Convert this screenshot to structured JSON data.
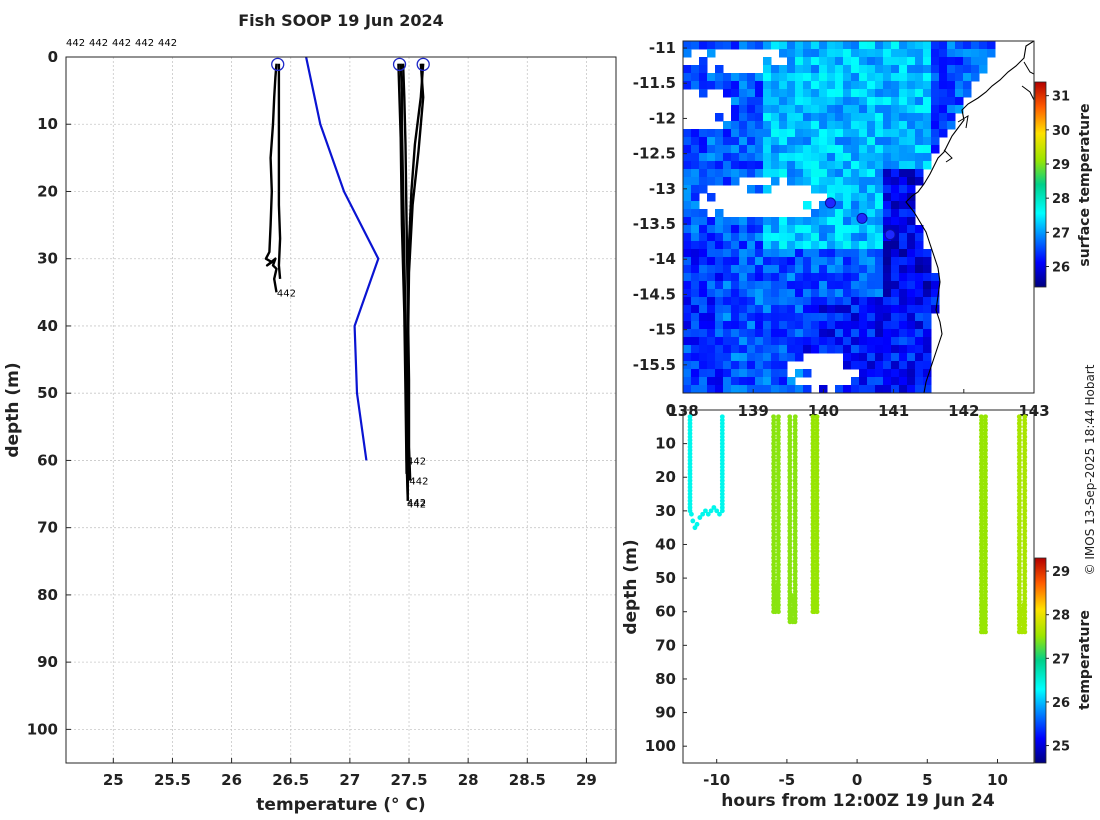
{
  "figure_title": "Fish SOOP 19 Jun 2024",
  "copyright": "© IMOS 13-Sep-2025 18:44 Hobart",
  "colors": {
    "profile": "#000000",
    "climatology": "#0a14d2",
    "start_marker": "#1e28c8",
    "coast": "#000000"
  },
  "chart_data": [
    {
      "id": "profile",
      "type": "line",
      "xlabel": "temperature (° C)",
      "ylabel": "depth (m)",
      "xlim": [
        24.6,
        29.25
      ],
      "ylim": [
        0,
        105
      ],
      "y_reversed": true,
      "xticks": [
        25,
        25.5,
        26,
        26.5,
        27,
        27.5,
        28,
        28.5,
        29
      ],
      "yticks": [
        0,
        10,
        20,
        30,
        40,
        50,
        60,
        70,
        80,
        90,
        100
      ],
      "grid": true,
      "top_labels": [
        "442",
        "442",
        "442",
        "442",
        "442"
      ],
      "series": [
        {
          "name": "442 profile 1",
          "label": "442",
          "label_at": [
            26.4,
            35
          ],
          "points": [
            [
              26.38,
              1
            ],
            [
              26.37,
              3
            ],
            [
              26.36,
              6
            ],
            [
              26.35,
              10
            ],
            [
              26.33,
              15
            ],
            [
              26.34,
              20
            ],
            [
              26.33,
              25
            ],
            [
              26.32,
              29
            ],
            [
              26.29,
              30
            ],
            [
              26.34,
              30.5
            ],
            [
              26.3,
              31
            ],
            [
              26.37,
              30
            ],
            [
              26.35,
              31
            ],
            [
              26.38,
              31.5
            ],
            [
              26.36,
              33
            ],
            [
              26.38,
              35
            ]
          ]
        },
        {
          "name": "442 profile 1b",
          "label": "",
          "points": [
            [
              26.4,
              1
            ],
            [
              26.4,
              8
            ],
            [
              26.4,
              15
            ],
            [
              26.4,
              22
            ],
            [
              26.41,
              27
            ],
            [
              26.4,
              31
            ],
            [
              26.41,
              33
            ]
          ]
        },
        {
          "name": "442 profile 2",
          "label": "442",
          "label_at": [
            27.5,
            60
          ],
          "points": [
            [
              27.43,
              1
            ],
            [
              27.44,
              5
            ],
            [
              27.44,
              10
            ],
            [
              27.45,
              20
            ],
            [
              27.46,
              30
            ],
            [
              27.47,
              40
            ],
            [
              27.48,
              50
            ],
            [
              27.49,
              60
            ],
            [
              27.49,
              65
            ]
          ]
        },
        {
          "name": "442 profile 3",
          "label": "442",
          "label_at": [
            27.52,
            63
          ],
          "points": [
            [
              27.45,
              1
            ],
            [
              27.46,
              6
            ],
            [
              27.47,
              13
            ],
            [
              27.48,
              25
            ],
            [
              27.49,
              36
            ],
            [
              27.5,
              48
            ],
            [
              27.5,
              58
            ],
            [
              27.51,
              63
            ]
          ]
        },
        {
          "name": "442 profile 4",
          "label": "442",
          "label_at": [
            27.5,
            66.2
          ],
          "points": [
            [
              27.62,
              1
            ],
            [
              27.6,
              6
            ],
            [
              27.55,
              13
            ],
            [
              27.52,
              20
            ],
            [
              27.5,
              28
            ],
            [
              27.49,
              40
            ],
            [
              27.48,
              52
            ],
            [
              27.48,
              60
            ],
            [
              27.49,
              66
            ]
          ]
        },
        {
          "name": "442 profile 5",
          "label": "442",
          "label_at": [
            27.5,
            66.4
          ],
          "points": [
            [
              27.6,
              1
            ],
            [
              27.62,
              6
            ],
            [
              27.58,
              14
            ],
            [
              27.53,
              22
            ],
            [
              27.5,
              32
            ],
            [
              27.49,
              45
            ],
            [
              27.48,
              55
            ],
            [
              27.49,
              66
            ]
          ]
        },
        {
          "name": "442 profile 6",
          "label": "",
          "points": [
            [
              27.41,
              1
            ],
            [
              27.43,
              12
            ],
            [
              27.44,
              25
            ],
            [
              27.46,
              38
            ],
            [
              27.47,
              50
            ],
            [
              27.48,
              62
            ]
          ]
        }
      ],
      "start_markers": [
        [
          26.39,
          0.5
        ],
        [
          27.42,
          0.5
        ],
        [
          27.62,
          0.5
        ]
      ],
      "climatology": {
        "name": "climatology",
        "points": [
          [
            26.63,
            0
          ],
          [
            26.75,
            10
          ],
          [
            26.95,
            20
          ],
          [
            27.24,
            30
          ],
          [
            27.04,
            40
          ],
          [
            27.06,
            50
          ],
          [
            27.14,
            60
          ]
        ]
      }
    },
    {
      "id": "map",
      "type": "heatmap",
      "colorbar_label": "surface temperature",
      "colorbar_ticks": [
        26,
        27,
        28,
        29,
        30,
        31
      ],
      "colorbar_range": [
        25.4,
        31.4
      ],
      "xlim": [
        138.0,
        143.0
      ],
      "ylim": [
        -15.9,
        -10.9
      ],
      "xticks": [
        138,
        139,
        140,
        141,
        142,
        143
      ],
      "xtick_labels": [
        "138",
        "139",
        "140",
        "141",
        "142",
        "143"
      ],
      "yticks": [
        -11,
        -11.5,
        -12,
        -12.5,
        -13,
        -13.5,
        -14,
        -14.5,
        -15,
        -15.5
      ],
      "stations": [
        [
          140.1,
          -13.2
        ],
        [
          140.55,
          -13.42
        ],
        [
          140.95,
          -13.65
        ]
      ]
    },
    {
      "id": "timeseries",
      "type": "scatter",
      "xlabel": "hours from 12:00Z 19 Jun 24",
      "ylabel": "depth (m)",
      "colorbar_label": "temperature",
      "xlim": [
        -12.4,
        12.6
      ],
      "ylim": [
        0,
        105
      ],
      "y_reversed": true,
      "xticks": [
        -10,
        -5,
        0,
        5,
        10
      ],
      "yticks": [
        0,
        10,
        20,
        30,
        40,
        50,
        60,
        70,
        80,
        90,
        100
      ],
      "colorbar_ticks": [
        25,
        26,
        27,
        28,
        29
      ],
      "colorbar_range": [
        24.6,
        29.3
      ],
      "profiles": [
        {
          "start_hr": -11.9,
          "end_hr": -9.6,
          "max_depth": 35,
          "temp": 26.4,
          "shape": "u"
        },
        {
          "start_hr": -5.95,
          "end_hr": -5.6,
          "max_depth": 60,
          "temp": 27.45,
          "shape": "v"
        },
        {
          "start_hr": -4.8,
          "end_hr": -4.4,
          "max_depth": 63,
          "temp": 27.45,
          "shape": "v"
        },
        {
          "start_hr": -3.15,
          "end_hr": -2.85,
          "max_depth": 60,
          "temp": 27.5,
          "shape": "v"
        },
        {
          "start_hr": 8.85,
          "end_hr": 9.15,
          "max_depth": 66,
          "temp": 27.5,
          "shape": "v"
        },
        {
          "start_hr": 11.55,
          "end_hr": 11.95,
          "max_depth": 66,
          "temp": 27.6,
          "shape": "v"
        }
      ]
    }
  ]
}
